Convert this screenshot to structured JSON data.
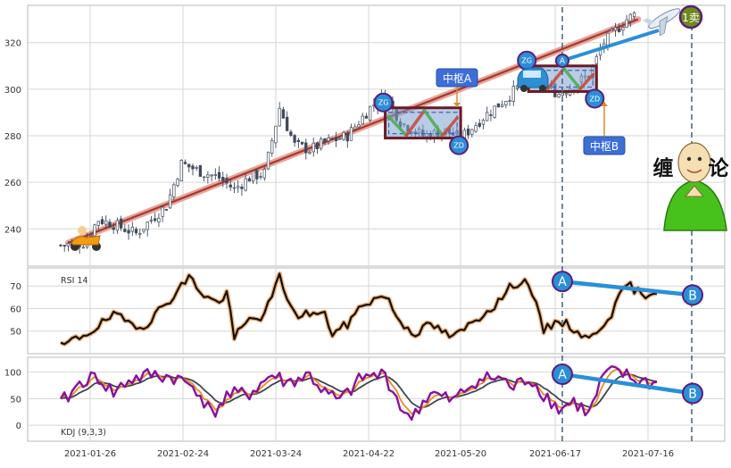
{
  "colors": {
    "up": "#ffffff",
    "down": "#3e4a5c",
    "wick": "#3e4a5c",
    "trend_line": "#a33a2e",
    "trend_glow": "#e9a49b",
    "rsi_line": "#111111",
    "rsi_glow": "#f4b27a",
    "kdj_k": "#e98a1e",
    "kdj_d": "#3d4650",
    "kdj_j": "#8b0f9e",
    "marker_fill": "#2b8fd8",
    "marker_stroke": "#5a1f78",
    "pivot_box": "#6b1a24",
    "pivot_fill": "#7fa2d1",
    "label_box": "#3d6ed8",
    "sell_fill": "#6f8a1c",
    "vline": "#4f6a86",
    "divergence": "#2b8fd8",
    "grid": "#d6d6d6"
  },
  "icons": [
    "scooter-icon",
    "car-icon",
    "airplane-icon",
    "buddha-mascot-icon"
  ],
  "chart_data": [
    {
      "type": "candlestick",
      "panel": "price",
      "ylim": [
        224,
        336
      ],
      "yticks": [
        "240",
        "260",
        "280",
        "300",
        "320"
      ],
      "xtick_labels": [
        "2021-01-26",
        "2021-02-24",
        "2021-03-24",
        "2021-04-22",
        "2021-05-20",
        "2021-06-17",
        "2021-07-16"
      ],
      "trend_line": {
        "from_close": 234,
        "to_close": 330
      },
      "pivot_zones": [
        {
          "label": "中枢A",
          "zg_label": "ZG",
          "zd_label": "ZD",
          "zg": 292,
          "zd": 279,
          "from_bar": 86,
          "to_bar": 106
        },
        {
          "label": "中枢B",
          "zg_label": "ZG",
          "zd_label": "ZD",
          "zg": 310,
          "zd": 299,
          "from_bar": 124,
          "to_bar": 142
        }
      ],
      "markers": {
        "buy_point": "A",
        "sell_point": "1卖"
      },
      "mascot_text": "缠论"
    },
    {
      "type": "line",
      "panel": "rsi",
      "title": "RSI 14",
      "ylim": [
        40,
        78
      ],
      "yticks": [
        "50",
        "60",
        "70"
      ],
      "divergence": {
        "start": "A",
        "end": "B",
        "start_value": 72,
        "end_value": 66
      }
    },
    {
      "type": "line",
      "panel": "kdj",
      "title": "KDJ (9,3,3)",
      "ylim": [
        -30,
        128
      ],
      "yticks": [
        "0",
        "50",
        "100"
      ],
      "divergence": {
        "start": "A",
        "end": "B",
        "start_value": 96,
        "end_value": 60
      }
    }
  ]
}
